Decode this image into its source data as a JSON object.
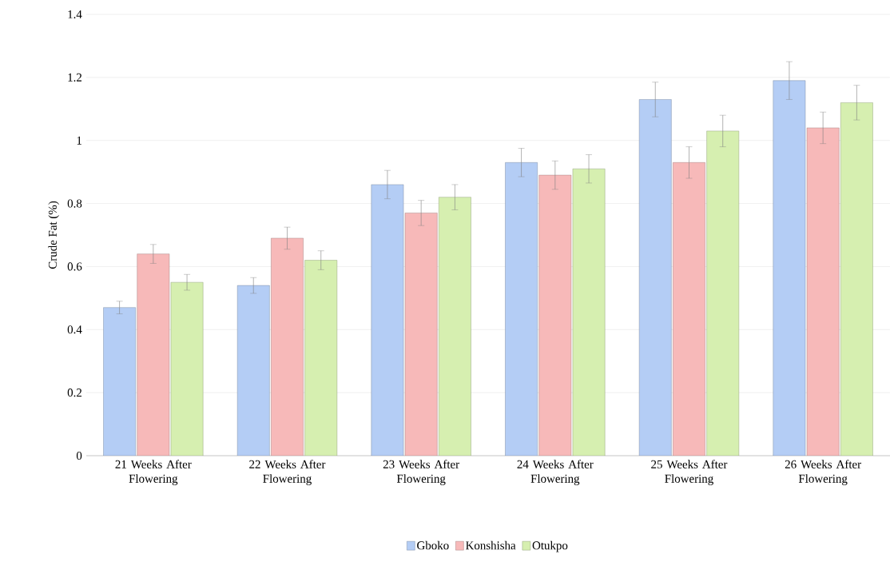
{
  "chart_data": {
    "type": "bar",
    "ylabel": "Crude Fat (%)",
    "categories": [
      "21 Weeks After Flowering",
      "22 Weeks After Flowering",
      "23 Weeks After Flowering",
      "24 Weeks After Flowering",
      "25 Weeks After Flowering",
      "26 Weeks After Flowering"
    ],
    "series": [
      {
        "name": "Gboko",
        "color": "#b4cdf5",
        "values": [
          0.47,
          0.54,
          0.86,
          0.93,
          1.13,
          1.19
        ],
        "errors": [
          0.02,
          0.025,
          0.045,
          0.045,
          0.055,
          0.06
        ]
      },
      {
        "name": "Konshisha",
        "color": "#f7b9b9",
        "values": [
          0.64,
          0.69,
          0.77,
          0.89,
          0.93,
          1.04
        ],
        "errors": [
          0.03,
          0.035,
          0.04,
          0.045,
          0.05,
          0.05
        ]
      },
      {
        "name": "Otukpo",
        "color": "#d6efb0",
        "values": [
          0.55,
          0.62,
          0.82,
          0.91,
          1.03,
          1.12
        ],
        "errors": [
          0.025,
          0.03,
          0.04,
          0.045,
          0.05,
          0.055
        ]
      }
    ],
    "ylim": [
      0,
      1.4
    ],
    "yticks": [
      0,
      0.2,
      0.4,
      0.6,
      0.8,
      1,
      1.2,
      1.4
    ],
    "grid": "y",
    "legend": "bottom"
  }
}
